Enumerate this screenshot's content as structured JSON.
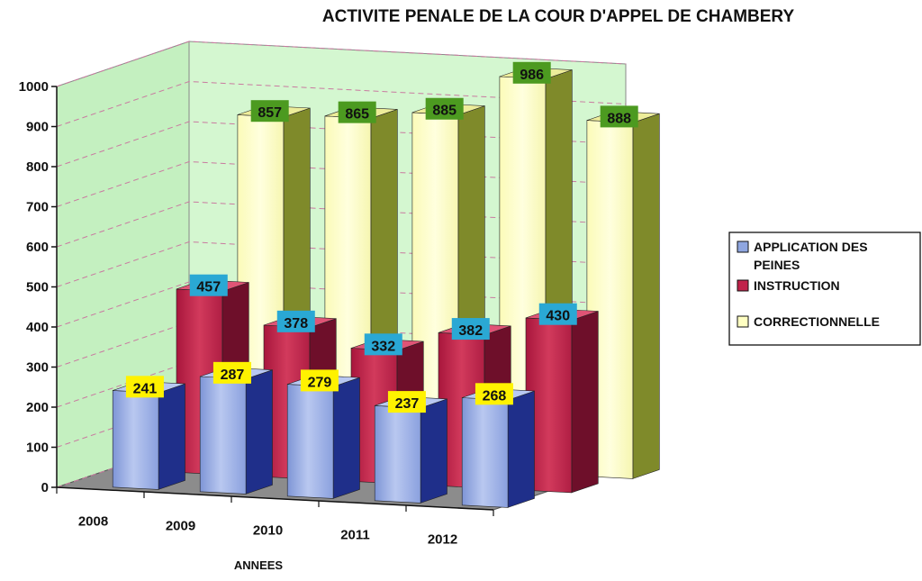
{
  "chart_data": {
    "type": "bar",
    "title": "ACTIVITE PENALE DE LA COUR D'APPEL DE CHAMBERY",
    "xlabel": "ANNEES",
    "ylabel": "",
    "categories": [
      "2008",
      "2009",
      "2010",
      "2011",
      "2012"
    ],
    "series": [
      {
        "name": "CORRECTIONNELLE",
        "values": [
          857,
          865,
          885,
          986,
          888
        ]
      },
      {
        "name": "INSTRUCTION",
        "values": [
          457,
          378,
          332,
          382,
          430
        ]
      },
      {
        "name": "APPLICATION DES PEINES",
        "values": [
          241,
          287,
          279,
          237,
          268
        ]
      }
    ],
    "legend": {
      "position": "right",
      "entries": [
        {
          "lines": [
            "APPLICATION DES",
            "PEINES"
          ],
          "color": "#8fa6e0"
        },
        {
          "lines": [
            "INSTRUCTION"
          ],
          "color": "#c0224a"
        },
        {
          "lines": [
            "CORRECTIONNELLE"
          ],
          "color": "#ffffc2"
        }
      ]
    },
    "yticks": [
      0,
      100,
      200,
      300,
      400,
      500,
      600,
      700,
      800,
      900,
      1000
    ],
    "ylim": [
      0,
      1000
    ],
    "grid": true,
    "colors": {
      "CORRECTIONNELLE": "#ffffc2",
      "INSTRUCTION": "#c0224a",
      "APPLICATION DES PEINES": "#8fa6e0",
      "wall": "#d4f7d0",
      "floor": "#8c8c8c",
      "label_correctionnelle": "#4c9a20",
      "label_instruction": "#2aa8d4",
      "label_application": "#fff200"
    }
  }
}
